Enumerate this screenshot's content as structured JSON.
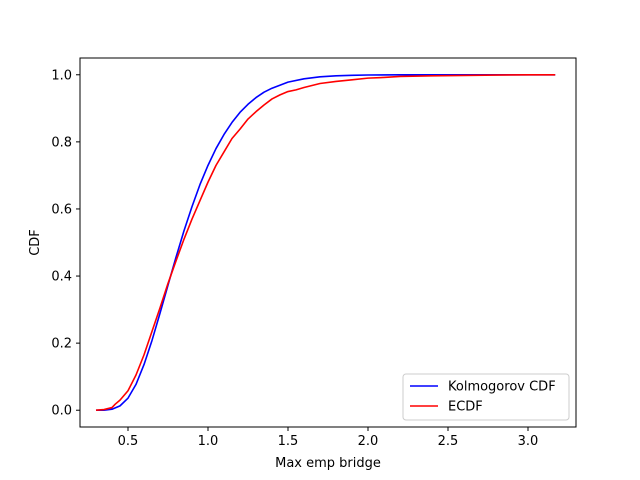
{
  "chart_data": {
    "type": "line",
    "title": "",
    "xlabel": "Max emp bridge",
    "ylabel": "CDF",
    "xlim": [
      0.2,
      3.3
    ],
    "ylim": [
      -0.05,
      1.05
    ],
    "x_ticks": [
      "0.5",
      "1.0",
      "1.5",
      "2.0",
      "2.5",
      "3.0"
    ],
    "y_ticks": [
      "0.0",
      "0.2",
      "0.4",
      "0.6",
      "0.8",
      "1.0"
    ],
    "grid": false,
    "legend": {
      "placement": "lower-right",
      "entries": [
        "Kolmogorov CDF",
        "ECDF"
      ]
    },
    "series": [
      {
        "name": "Kolmogorov CDF",
        "color": "#0000ff",
        "points": [
          [
            0.3,
            0.0
          ],
          [
            0.35,
            0.0
          ],
          [
            0.4,
            0.003
          ],
          [
            0.45,
            0.013
          ],
          [
            0.5,
            0.036
          ],
          [
            0.55,
            0.077
          ],
          [
            0.6,
            0.136
          ],
          [
            0.65,
            0.208
          ],
          [
            0.7,
            0.289
          ],
          [
            0.75,
            0.373
          ],
          [
            0.8,
            0.456
          ],
          [
            0.85,
            0.535
          ],
          [
            0.9,
            0.607
          ],
          [
            0.95,
            0.673
          ],
          [
            1.0,
            0.73
          ],
          [
            1.05,
            0.78
          ],
          [
            1.1,
            0.822
          ],
          [
            1.15,
            0.858
          ],
          [
            1.2,
            0.888
          ],
          [
            1.25,
            0.912
          ],
          [
            1.3,
            0.932
          ],
          [
            1.35,
            0.948
          ],
          [
            1.4,
            0.96
          ],
          [
            1.5,
            0.978
          ],
          [
            1.6,
            0.988
          ],
          [
            1.7,
            0.994
          ],
          [
            1.8,
            0.997
          ],
          [
            1.9,
            0.9985
          ],
          [
            2.0,
            0.9993
          ],
          [
            2.2,
            0.9999
          ],
          [
            2.5,
            1.0
          ],
          [
            3.0,
            1.0
          ],
          [
            3.17,
            1.0
          ]
        ]
      },
      {
        "name": "ECDF",
        "color": "#ff0000",
        "points": [
          [
            0.3,
            0.0
          ],
          [
            0.35,
            0.002
          ],
          [
            0.4,
            0.008
          ],
          [
            0.42,
            0.018
          ],
          [
            0.45,
            0.03
          ],
          [
            0.5,
            0.058
          ],
          [
            0.55,
            0.105
          ],
          [
            0.6,
            0.165
          ],
          [
            0.65,
            0.235
          ],
          [
            0.7,
            0.305
          ],
          [
            0.75,
            0.378
          ],
          [
            0.8,
            0.445
          ],
          [
            0.85,
            0.51
          ],
          [
            0.9,
            0.57
          ],
          [
            0.95,
            0.625
          ],
          [
            1.0,
            0.68
          ],
          [
            1.05,
            0.73
          ],
          [
            1.1,
            0.77
          ],
          [
            1.15,
            0.81
          ],
          [
            1.2,
            0.838
          ],
          [
            1.25,
            0.868
          ],
          [
            1.3,
            0.89
          ],
          [
            1.35,
            0.91
          ],
          [
            1.4,
            0.928
          ],
          [
            1.45,
            0.94
          ],
          [
            1.5,
            0.95
          ],
          [
            1.55,
            0.955
          ],
          [
            1.6,
            0.962
          ],
          [
            1.65,
            0.968
          ],
          [
            1.7,
            0.974
          ],
          [
            1.8,
            0.98
          ],
          [
            1.9,
            0.985
          ],
          [
            2.0,
            0.99
          ],
          [
            2.1,
            0.992
          ],
          [
            2.2,
            0.995
          ],
          [
            2.4,
            0.997
          ],
          [
            2.6,
            0.998
          ],
          [
            2.8,
            0.999
          ],
          [
            3.0,
            1.0
          ],
          [
            3.17,
            1.0
          ]
        ]
      }
    ]
  }
}
